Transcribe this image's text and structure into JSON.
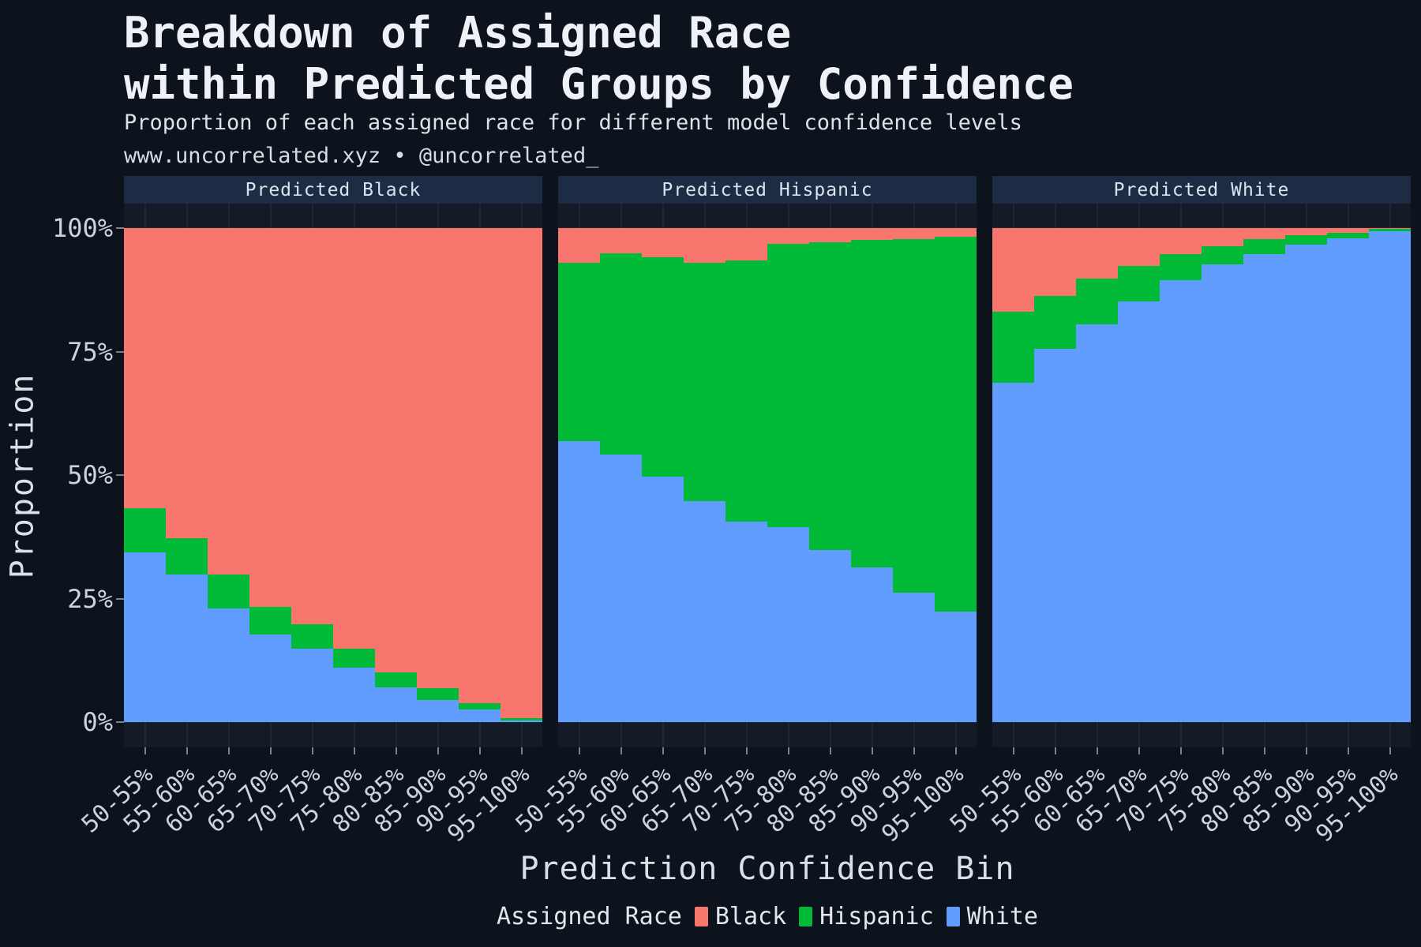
{
  "header": {
    "title_line1": "Breakdown of Assigned Race",
    "title_line2": "within Predicted Groups by Confidence",
    "subtitle": "Proportion of each assigned race for different model confidence levels",
    "source": "www.uncorrelated.xyz • @uncorrelated_"
  },
  "axes": {
    "y_title": "Proportion",
    "x_title": "Prediction Confidence Bin",
    "y_ticks": [
      "100%",
      "75%",
      "50%",
      "25%",
      "0%"
    ]
  },
  "legend": {
    "title": "Assigned Race",
    "items": [
      {
        "label": "Black",
        "color": "#f8766d"
      },
      {
        "label": "Hispanic",
        "color": "#00ba38"
      },
      {
        "label": "White",
        "color": "#619cff"
      }
    ]
  },
  "colors": {
    "background": "#0d131d",
    "panel_background": "#151b26",
    "strip_background": "#1e2b45",
    "black_series": "#f8766d",
    "hispanic_series": "#00ba38",
    "white_series": "#619cff"
  },
  "chart_data": {
    "type": "bar",
    "stacked": true,
    "title": "Breakdown of Assigned Race within Predicted Groups by Confidence",
    "subtitle": "Proportion of each assigned race for different model confidence levels",
    "xlabel": "Prediction Confidence Bin",
    "ylabel": "Proportion",
    "ylim": [
      0,
      100
    ],
    "y_tick_values_pct": [
      0,
      25,
      50,
      75,
      100
    ],
    "grid": true,
    "legend_position": "bottom",
    "legend_title": "Assigned Race",
    "stack_order_top_to_bottom": [
      "Black",
      "Hispanic",
      "White"
    ],
    "categories": [
      "50-55%",
      "55-60%",
      "60-65%",
      "65-70%",
      "70-75%",
      "75-80%",
      "80-85%",
      "85-90%",
      "90-95%",
      "95-100%"
    ],
    "facets": [
      {
        "label": "Predicted Black",
        "series": [
          {
            "name": "Black",
            "color": "#f8766d",
            "values": [
              56.7,
              62.7,
              70.2,
              76.7,
              80.2,
              85.2,
              90.0,
              93.2,
              96.2,
              99.2
            ]
          },
          {
            "name": "Hispanic",
            "color": "#00ba38",
            "values": [
              9.0,
              7.5,
              6.8,
              5.5,
              5.0,
              3.7,
              2.9,
              2.4,
              1.3,
              0.5
            ]
          },
          {
            "name": "White",
            "color": "#619cff",
            "values": [
              34.3,
              29.8,
              23.0,
              17.8,
              14.8,
              11.1,
              7.1,
              4.4,
              2.5,
              0.3
            ]
          }
        ]
      },
      {
        "label": "Predicted Hispanic",
        "series": [
          {
            "name": "Black",
            "color": "#f8766d",
            "values": [
              7.0,
              5.1,
              5.9,
              7.0,
              6.5,
              3.2,
              2.9,
              2.4,
              2.2,
              1.7
            ]
          },
          {
            "name": "Hispanic",
            "color": "#00ba38",
            "values": [
              36.2,
              40.8,
              44.4,
              48.2,
              53.0,
              57.3,
              62.3,
              66.3,
              71.6,
              75.9
            ]
          },
          {
            "name": "White",
            "color": "#619cff",
            "values": [
              56.8,
              54.1,
              49.7,
              44.8,
              40.5,
              39.5,
              34.8,
              31.3,
              26.2,
              22.4
            ]
          }
        ]
      },
      {
        "label": "Predicted White",
        "series": [
          {
            "name": "Black",
            "color": "#f8766d",
            "values": [
              17.0,
              13.7,
              10.2,
              7.6,
              5.2,
              3.7,
              2.2,
              1.4,
              1.0,
              0.2
            ]
          },
          {
            "name": "Hispanic",
            "color": "#00ba38",
            "values": [
              14.3,
              10.7,
              9.3,
              7.2,
              5.4,
              3.7,
              3.0,
              1.9,
              1.1,
              0.4
            ]
          },
          {
            "name": "White",
            "color": "#619cff",
            "values": [
              68.7,
              75.6,
              80.5,
              85.2,
              89.4,
              92.6,
              94.8,
              96.7,
              97.9,
              99.4
            ]
          }
        ]
      }
    ]
  }
}
